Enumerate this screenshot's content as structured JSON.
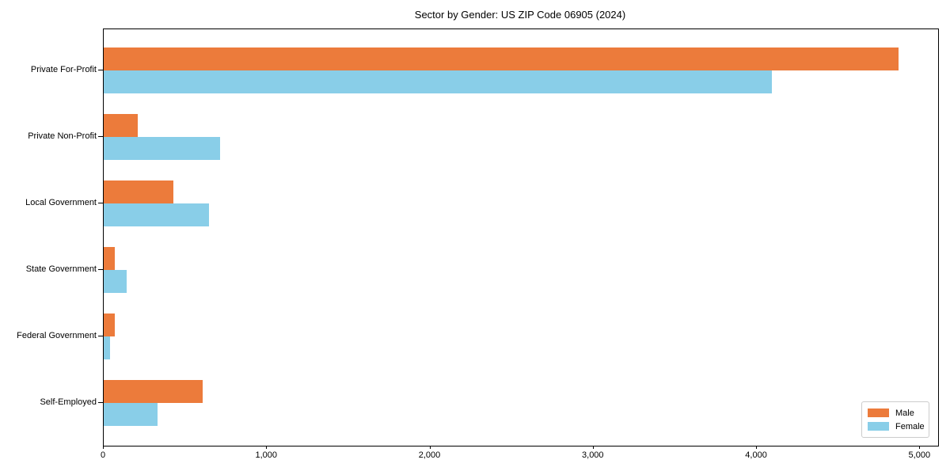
{
  "chart_data": {
    "type": "bar",
    "orientation": "horizontal",
    "title": "Sector by Gender: US ZIP Code 06905 (2024)",
    "categories": [
      "Private For-Profit",
      "Private Non-Profit",
      "Local Government",
      "State Government",
      "Federal Government",
      "Self-Employed"
    ],
    "series": [
      {
        "name": "Male",
        "color": "#EC7B3B",
        "values": [
          4870,
          210,
          429,
          70,
          70,
          607
        ]
      },
      {
        "name": "Female",
        "color": "#89CEE8",
        "values": [
          4090,
          712,
          646,
          143,
          40,
          332
        ]
      }
    ],
    "xlabel": "",
    "ylabel": "",
    "x_ticks": [
      0,
      1000,
      2000,
      3000,
      4000,
      5000
    ],
    "x_tick_labels": [
      "0",
      "1,000",
      "2,000",
      "3,000",
      "4,000",
      "5,000"
    ],
    "xlim": [
      0,
      5110
    ],
    "grid": false,
    "legend_position": "lower right",
    "frame_color": "#000000",
    "background_color": "#ffffff"
  }
}
